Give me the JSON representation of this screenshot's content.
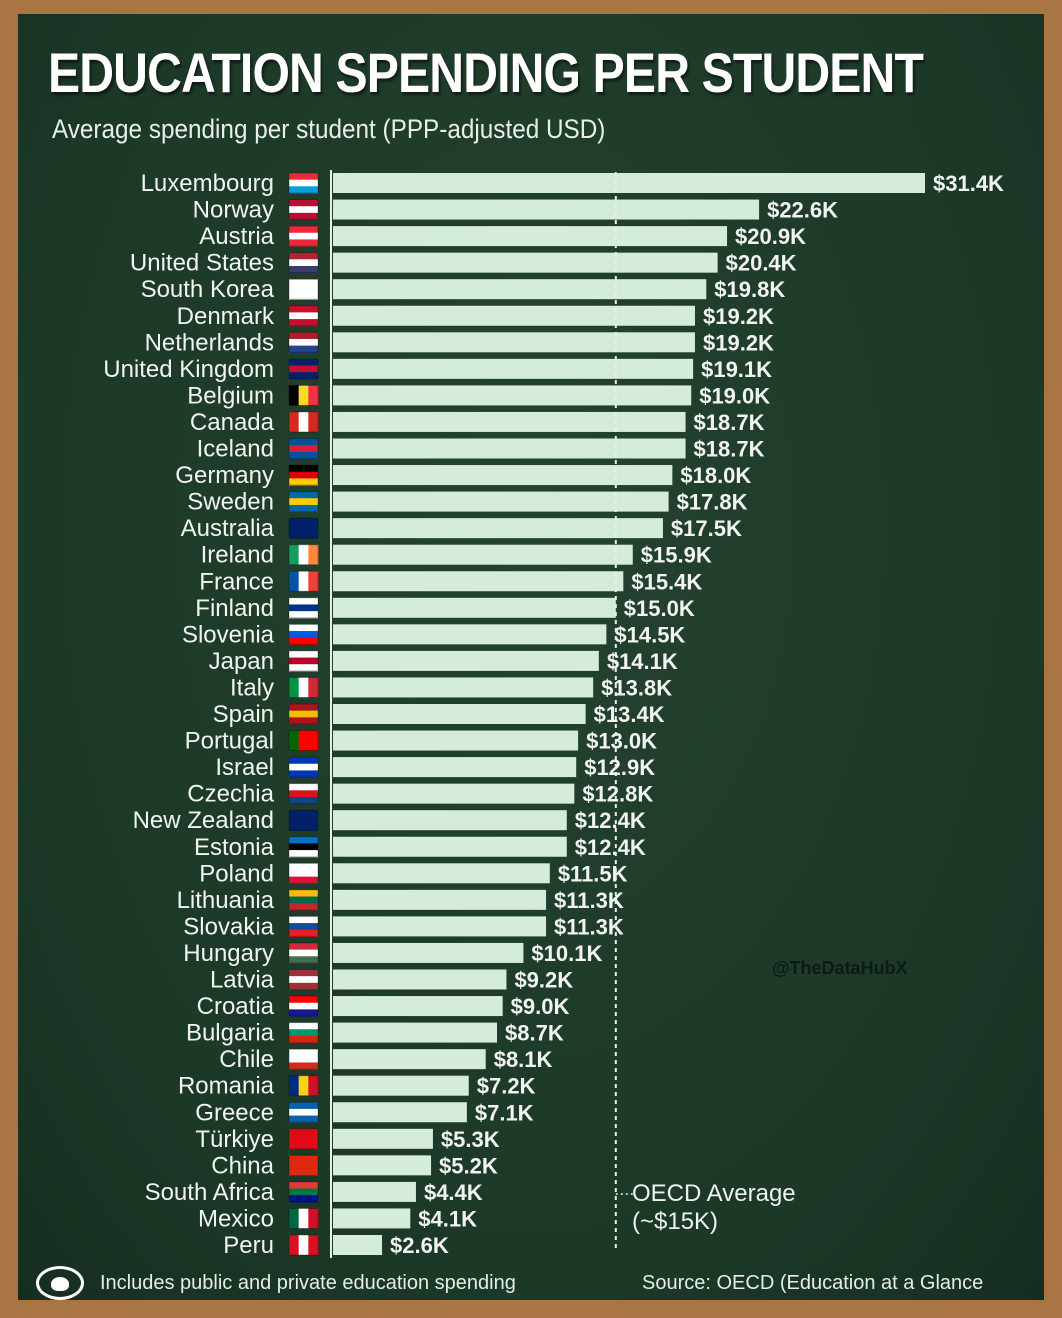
{
  "title": "EDUCATION SPENDING PER STUDENT",
  "subtitle": "Average spending per student (PPP-adjusted USD)",
  "footer_note": "Includes public and private education spending",
  "source": "Source: OECD (Education at a Glance",
  "watermark": "@TheDataHubX",
  "colors": {
    "frame": "#a87543",
    "board": "#1f3d2c",
    "bar": "#d5ecdb",
    "text": "#f1f4f1"
  },
  "chart_data": {
    "type": "bar",
    "orientation": "horizontal",
    "title": "EDUCATION SPENDING PER STUDENT",
    "subtitle": "Average spending per student (PPP-adjusted USD)",
    "unit": "thousand USD (PPP)",
    "xlim": [
      0,
      31.4
    ],
    "grid": false,
    "reference_line": {
      "value": 15,
      "label_line1": "OECD Average",
      "label_line2": "(~$15K)"
    },
    "categories": [
      "Luxembourg",
      "Norway",
      "Austria",
      "United States",
      "South Korea",
      "Denmark",
      "Netherlands",
      "United Kingdom",
      "Belgium",
      "Canada",
      "Iceland",
      "Germany",
      "Sweden",
      "Australia",
      "Ireland",
      "France",
      "Finland",
      "Slovenia",
      "Japan",
      "Italy",
      "Spain",
      "Portugal",
      "Israel",
      "Czechia",
      "New Zealand",
      "Estonia",
      "Poland",
      "Lithuania",
      "Slovakia",
      "Hungary",
      "Latvia",
      "Croatia",
      "Bulgaria",
      "Chile",
      "Romania",
      "Greece",
      "Türkiye",
      "China",
      "South Africa",
      "Mexico",
      "Peru"
    ],
    "values": [
      31.4,
      22.6,
      20.9,
      20.4,
      19.8,
      19.2,
      19.2,
      19.1,
      19.0,
      18.7,
      18.7,
      18.0,
      17.8,
      17.5,
      15.9,
      15.4,
      15.0,
      14.5,
      14.1,
      13.8,
      13.4,
      13.0,
      12.9,
      12.8,
      12.4,
      12.4,
      11.5,
      11.3,
      11.3,
      10.1,
      9.2,
      9.0,
      8.7,
      8.1,
      7.2,
      7.1,
      5.3,
      5.2,
      4.4,
      4.1,
      2.6
    ],
    "value_labels": [
      "$31.4K",
      "$22.6K",
      "$20.9K",
      "$20.4K",
      "$19.8K",
      "$19.2K",
      "$19.2K",
      "$19.1K",
      "$19.0K",
      "$18.7K",
      "$18.7K",
      "$18.0K",
      "$17.8K",
      "$17.5K",
      "$15.9K",
      "$15.4K",
      "$15.0K",
      "$14.5K",
      "$14.1K",
      "$13.8K",
      "$13.4K",
      "$13.0K",
      "$12.9K",
      "$12.8K",
      "$12.4K",
      "$12.4K",
      "$11.5K",
      "$11.3K",
      "$11.3K",
      "$10.1K",
      "$9.2K",
      "$9.0K",
      "$8.7K",
      "$8.1K",
      "$7.2K",
      "$7.1K",
      "$5.3K",
      "$5.2K",
      "$4.4K",
      "$4.1K",
      "$2.6K"
    ],
    "flags": [
      [
        "h",
        "#ed2939",
        "#ffffff",
        "#00a1de"
      ],
      [
        "h",
        "#ba0c2f",
        "#ffffff",
        "#ba0c2f"
      ],
      [
        "h",
        "#ed2939",
        "#ffffff",
        "#ed2939"
      ],
      [
        "h",
        "#b22234",
        "#ffffff",
        "#3c3b6e"
      ],
      [
        "h",
        "#ffffff",
        "#ffffff",
        "#ffffff"
      ],
      [
        "h",
        "#c8102e",
        "#ffffff",
        "#c8102e"
      ],
      [
        "h",
        "#ae1c28",
        "#ffffff",
        "#21468b"
      ],
      [
        "h",
        "#012169",
        "#c8102e",
        "#012169"
      ],
      [
        "v",
        "#000000",
        "#fdda24",
        "#ef3340"
      ],
      [
        "v",
        "#d52b1e",
        "#ffffff",
        "#d52b1e"
      ],
      [
        "h",
        "#02529c",
        "#dc1e35",
        "#02529c"
      ],
      [
        "h",
        "#000000",
        "#dd0000",
        "#ffce00"
      ],
      [
        "h",
        "#006aa7",
        "#fecc00",
        "#006aa7"
      ],
      [
        "h",
        "#012169",
        "#012169",
        "#012169"
      ],
      [
        "v",
        "#169b62",
        "#ffffff",
        "#ff883e"
      ],
      [
        "v",
        "#0055a4",
        "#ffffff",
        "#ef4135"
      ],
      [
        "h",
        "#ffffff",
        "#003580",
        "#ffffff"
      ],
      [
        "h",
        "#ffffff",
        "#005ce6",
        "#ff0000"
      ],
      [
        "h",
        "#ffffff",
        "#bc002d",
        "#ffffff"
      ],
      [
        "v",
        "#009246",
        "#ffffff",
        "#ce2b37"
      ],
      [
        "h",
        "#aa151b",
        "#f1bf00",
        "#aa151b"
      ],
      [
        "v",
        "#006600",
        "#ff0000",
        "#ff0000"
      ],
      [
        "h",
        "#0038b8",
        "#ffffff",
        "#0038b8"
      ],
      [
        "h",
        "#ffffff",
        "#d7141a",
        "#11457e"
      ],
      [
        "h",
        "#012169",
        "#012169",
        "#012169"
      ],
      [
        "h",
        "#0072ce",
        "#000000",
        "#ffffff"
      ],
      [
        "h",
        "#ffffff",
        "#ffffff",
        "#dc143c"
      ],
      [
        "h",
        "#fdb913",
        "#006a44",
        "#c1272d"
      ],
      [
        "h",
        "#ffffff",
        "#0b4ea2",
        "#ee1c25"
      ],
      [
        "h",
        "#cd2a3e",
        "#ffffff",
        "#436f4d"
      ],
      [
        "h",
        "#9e3039",
        "#ffffff",
        "#9e3039"
      ],
      [
        "h",
        "#ff0000",
        "#ffffff",
        "#171796"
      ],
      [
        "h",
        "#ffffff",
        "#00966e",
        "#d62612"
      ],
      [
        "h",
        "#ffffff",
        "#ffffff",
        "#d52b1e"
      ],
      [
        "v",
        "#002b7f",
        "#fcd116",
        "#ce1126"
      ],
      [
        "h",
        "#0d5eaf",
        "#ffffff",
        "#0d5eaf"
      ],
      [
        "h",
        "#e30a17",
        "#e30a17",
        "#e30a17"
      ],
      [
        "h",
        "#de2910",
        "#de2910",
        "#de2910"
      ],
      [
        "h",
        "#e03c31",
        "#007749",
        "#001489"
      ],
      [
        "v",
        "#006847",
        "#ffffff",
        "#ce1126"
      ],
      [
        "v",
        "#d91023",
        "#ffffff",
        "#d91023"
      ]
    ]
  }
}
